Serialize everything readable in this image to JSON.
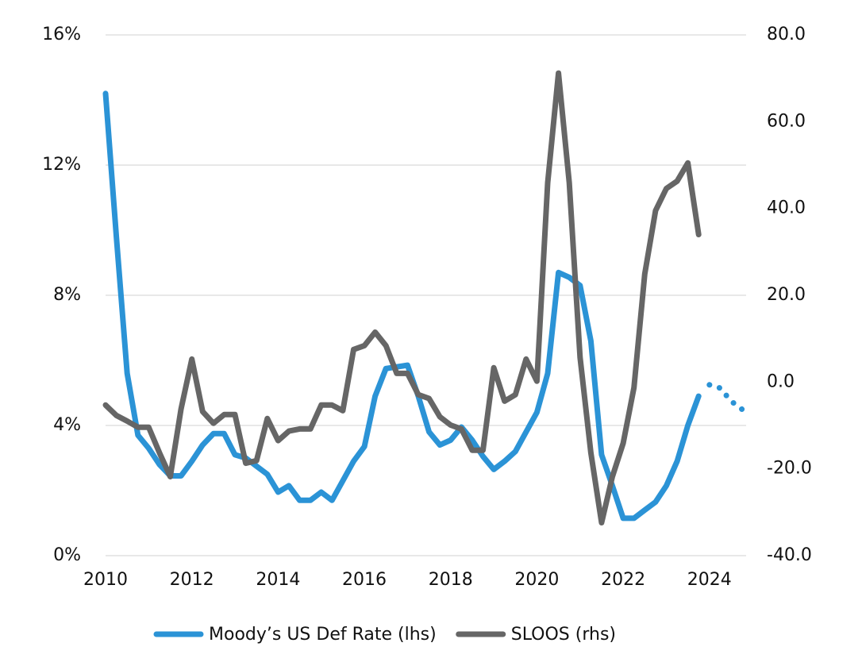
{
  "chart_data": {
    "type": "line",
    "x": [
      2010,
      2010.25,
      2010.5,
      2010.75,
      2011,
      2011.25,
      2011.5,
      2011.75,
      2012,
      2012.25,
      2012.5,
      2012.75,
      2013,
      2013.25,
      2013.5,
      2013.75,
      2014,
      2014.25,
      2014.5,
      2014.75,
      2015,
      2015.25,
      2015.5,
      2015.75,
      2016,
      2016.25,
      2016.5,
      2016.75,
      2017,
      2017.25,
      2017.5,
      2017.75,
      2018,
      2018.25,
      2018.5,
      2018.75,
      2019,
      2019.25,
      2019.5,
      2019.75,
      2020,
      2020.25,
      2020.5,
      2020.75,
      2021,
      2021.25,
      2021.5,
      2021.75,
      2022,
      2022.25,
      2022.5,
      2022.75,
      2023,
      2023.25,
      2023.5,
      2023.75,
      2024,
      2024.25,
      2024.5,
      2024.75
    ],
    "series": [
      {
        "name": "Moody’s US Def Rate (lhs)",
        "color": "#2b93d6",
        "dotted_from_index": 56,
        "values": [
          14.2,
          9.8,
          5.6,
          3.7,
          3.3,
          2.8,
          2.45,
          2.45,
          2.9,
          3.4,
          3.75,
          3.75,
          3.1,
          3.0,
          2.75,
          2.5,
          1.95,
          2.15,
          1.7,
          1.7,
          1.95,
          1.7,
          2.3,
          2.9,
          3.35,
          4.9,
          5.75,
          5.8,
          5.85,
          4.9,
          3.8,
          3.4,
          3.55,
          3.95,
          3.55,
          3.05,
          2.65,
          2.9,
          3.2,
          3.8,
          4.4,
          5.6,
          8.7,
          8.55,
          8.3,
          6.6,
          3.1,
          2.15,
          1.15,
          1.15,
          1.4,
          1.65,
          2.15,
          2.9,
          4.0,
          4.9,
          5.25,
          5.15,
          4.75,
          4.5
        ]
      },
      {
        "name": "SLOOS (rhs)",
        "color": "#666666",
        "axis": "y2",
        "values": [
          -5.3,
          -7.7,
          -9,
          -10.4,
          -10.4,
          -16.3,
          -21.8,
          -6.2,
          5.3,
          -6.8,
          -9.5,
          -7.5,
          -7.5,
          -18.7,
          -18.1,
          -8.4,
          -13.5,
          -11.3,
          -10.8,
          -10.8,
          -5.3,
          -5.3,
          -6.6,
          7.5,
          8.4,
          11.5,
          8.4,
          2.0,
          2.0,
          -2.9,
          -3.8,
          -8,
          -9.9,
          -10.8,
          -15.7,
          -15.7,
          3.3,
          -4.4,
          -2.9,
          5.3,
          0.2,
          45.9,
          71.2,
          45.9,
          5.7,
          -16.3,
          -32.4,
          -21.8,
          -14.1,
          -1.3,
          24.9,
          39.5,
          44.6,
          46.3,
          50.5,
          34.0,
          null,
          null,
          null,
          null
        ]
      }
    ],
    "xlim": [
      2010,
      2024.85
    ],
    "xticks": [
      2010,
      2012,
      2014,
      2016,
      2018,
      2020,
      2022,
      2024
    ],
    "ylim": [
      0,
      16
    ],
    "yticks": [
      {
        "value": 0,
        "label": "0%"
      },
      {
        "value": 4,
        "label": "4%"
      },
      {
        "value": 8,
        "label": "8%"
      },
      {
        "value": 12,
        "label": "12%"
      },
      {
        "value": 16,
        "label": "16%"
      }
    ],
    "y2lim": [
      -40,
      80
    ],
    "y2ticks": [
      {
        "value": -40,
        "label": "-40.0"
      },
      {
        "value": -20,
        "label": "-20.0"
      },
      {
        "value": 0,
        "label": "0.0"
      },
      {
        "value": 20,
        "label": "20.0"
      },
      {
        "value": 40,
        "label": "40.0"
      },
      {
        "value": 60,
        "label": "60.0"
      },
      {
        "value": 80,
        "label": "80.0"
      }
    ],
    "grid": true,
    "legend": "bottom"
  }
}
